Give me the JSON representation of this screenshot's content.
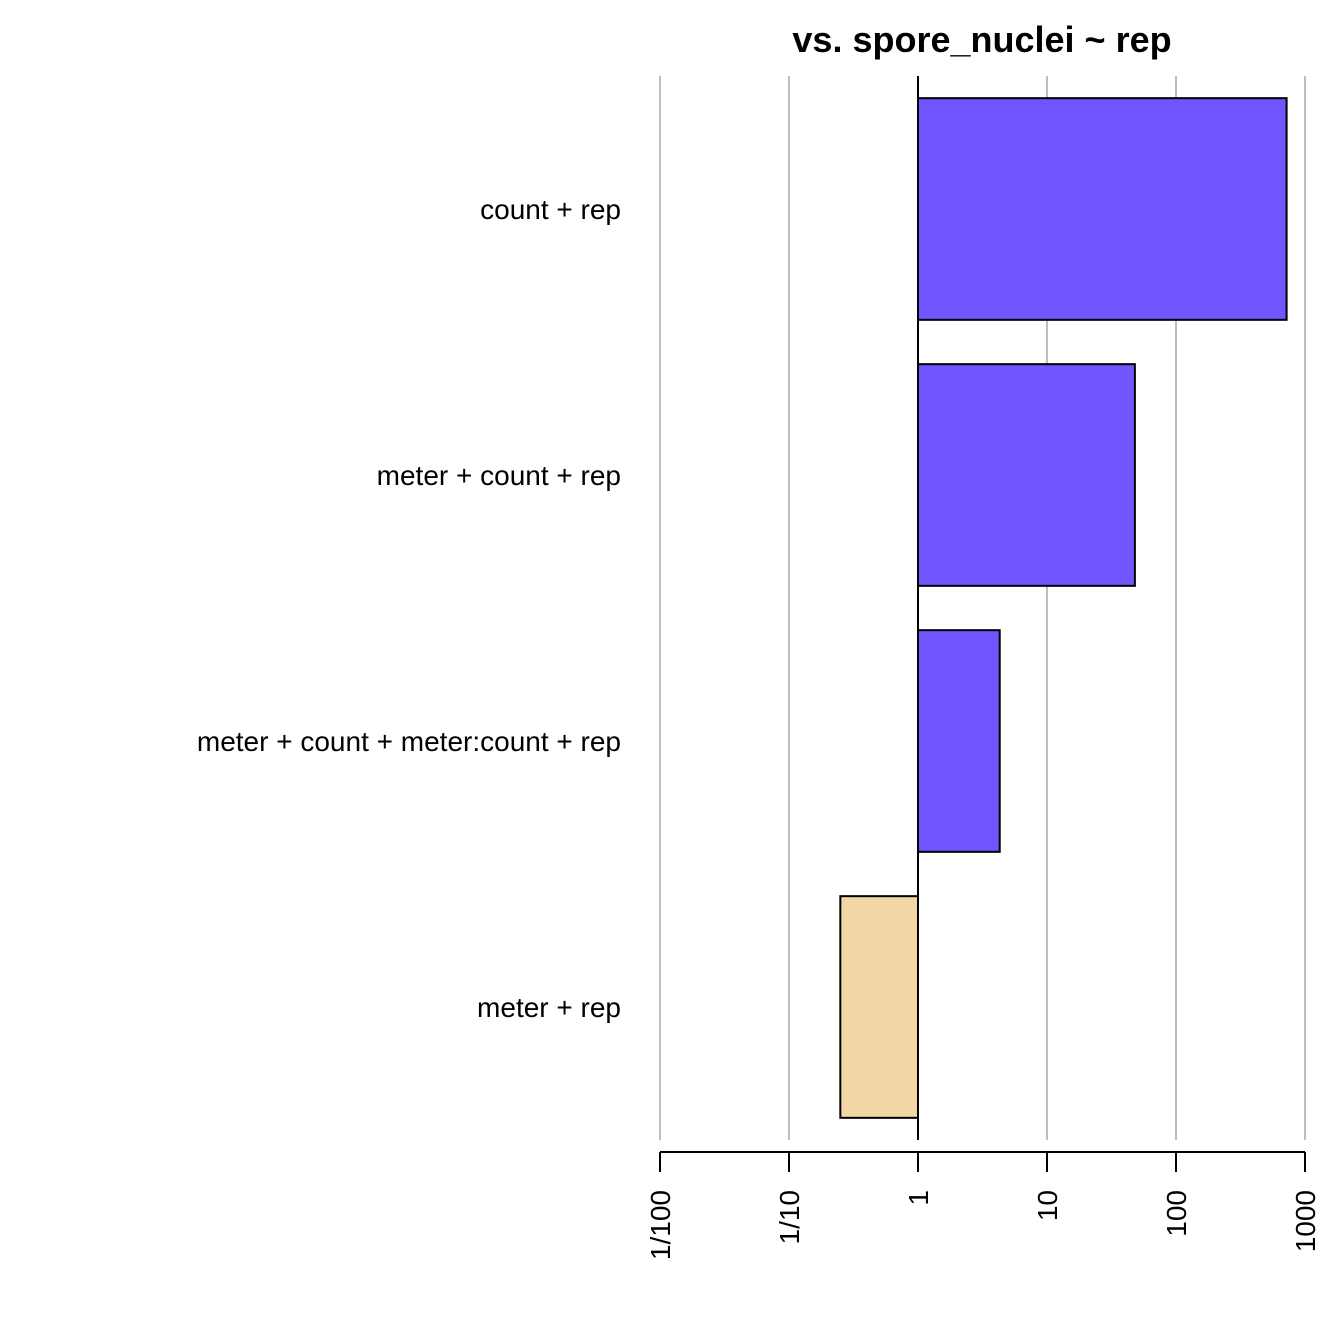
{
  "chart_data": {
    "type": "bar",
    "orientation": "horizontal",
    "title": "vs. spore_nuclei ~ rep",
    "xlabel": "",
    "ylabel": "",
    "x_scale": "log10",
    "xlim": [
      0.01,
      1000
    ],
    "baseline": 1,
    "grid": true,
    "x_ticks": [
      {
        "value": 0.01,
        "label": "1/100"
      },
      {
        "value": 0.1,
        "label": "1/10"
      },
      {
        "value": 1,
        "label": "1"
      },
      {
        "value": 10,
        "label": "10"
      },
      {
        "value": 100,
        "label": "100"
      },
      {
        "value": 1000,
        "label": "1000"
      }
    ],
    "categories": [
      "count + rep",
      "meter + count + rep",
      "meter + count + meter:count + rep",
      "meter + rep"
    ],
    "values": [
      720,
      48,
      4.3,
      0.25
    ],
    "colors": [
      "#7355ff",
      "#7355ff",
      "#7355ff",
      "#f2d6a4"
    ],
    "grid_color": "#bebebe"
  }
}
